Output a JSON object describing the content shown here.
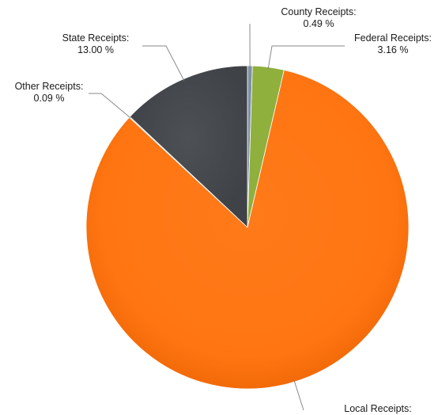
{
  "chart_data": {
    "type": "pie",
    "title": "",
    "slices": [
      {
        "name": "County Receipts:",
        "value": 0.49,
        "display": "0.49 %",
        "color": "#7f8fa6"
      },
      {
        "name": "Federal Receipts:",
        "value": 3.16,
        "display": "3.16 %",
        "color": "#8fb03c"
      },
      {
        "name": "Local Receipts:",
        "value": 83.26,
        "display": "",
        "color": "#ff7614"
      },
      {
        "name": "Other Receipts:",
        "value": 0.09,
        "display": "0.09 %",
        "color": "#7a8290"
      },
      {
        "name": "State Receipts:",
        "value": 13.0,
        "display": "13.00 %",
        "color": "#4a4d52"
      }
    ],
    "start_angle": "12 o'clock",
    "direction": "clockwise",
    "labels": "outside with leader lines",
    "legend": "none"
  }
}
